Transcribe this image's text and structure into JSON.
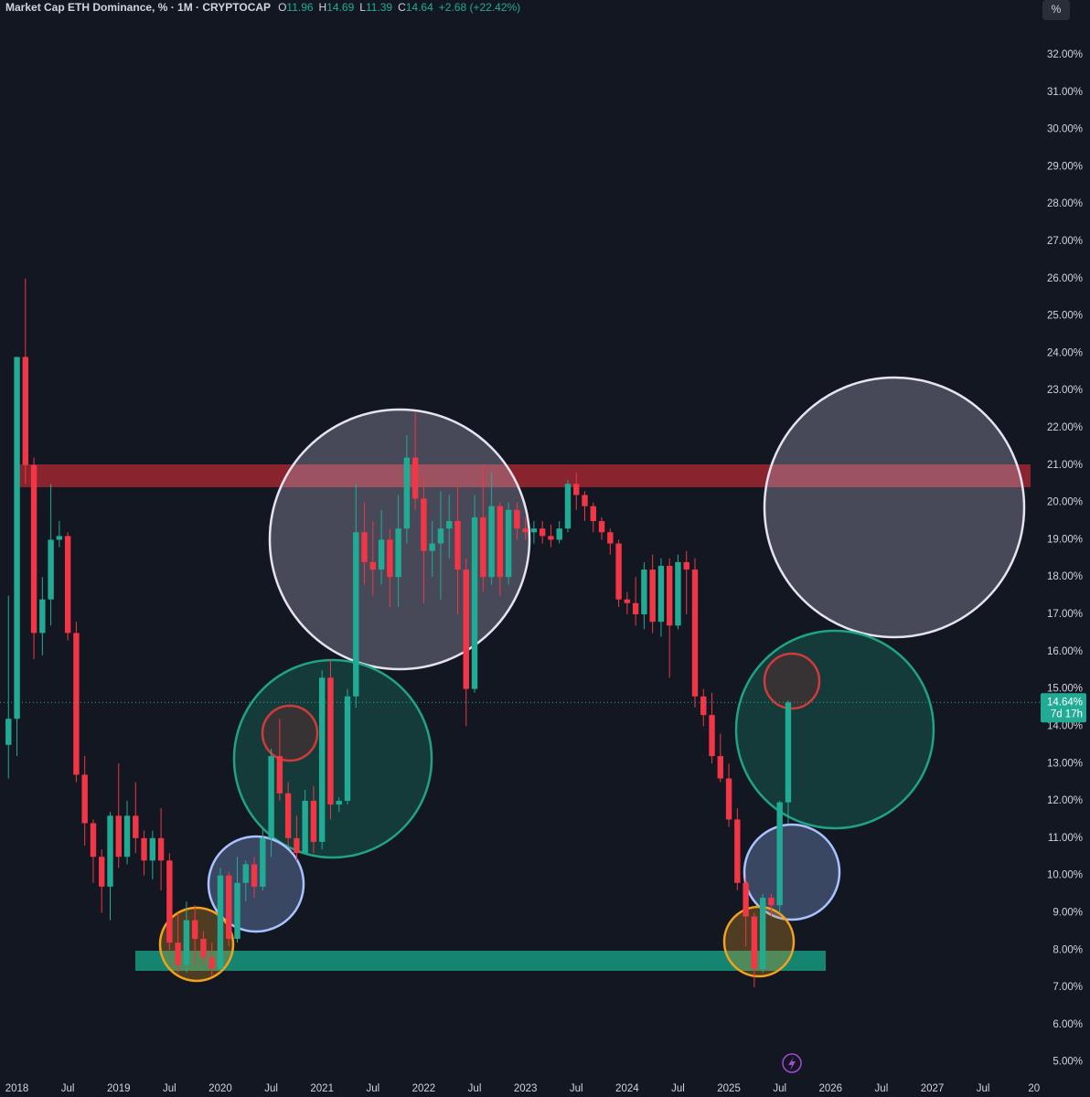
{
  "chart_data": {
    "type": "candlestick",
    "title": "Market Cap ETH Dominance, % · 1M · CRYPTOCAP",
    "ohlc_legend": [
      {
        "key": "O",
        "value": "11.96"
      },
      {
        "key": "H",
        "value": "14.69"
      },
      {
        "key": "L",
        "value": "11.39"
      },
      {
        "key": "C",
        "value": "14.64"
      }
    ],
    "change": "+2.68 (+22.42%)",
    "scale_button": "%",
    "up_color": "#22ab94",
    "down_color": "#f23645",
    "x": [
      "2017-12",
      "2018-01",
      "2018-02",
      "2018-03",
      "2018-04",
      "2018-05",
      "2018-06",
      "2018-07",
      "2018-08",
      "2018-09",
      "2018-10",
      "2018-11",
      "2018-12",
      "2019-01",
      "2019-02",
      "2019-03",
      "2019-04",
      "2019-05",
      "2019-06",
      "2019-07",
      "2019-08",
      "2019-09",
      "2019-10",
      "2019-11",
      "2019-12",
      "2020-01",
      "2020-02",
      "2020-03",
      "2020-04",
      "2020-05",
      "2020-06",
      "2020-07",
      "2020-08",
      "2020-09",
      "2020-10",
      "2020-11",
      "2020-12",
      "2021-01",
      "2021-02",
      "2021-03",
      "2021-04",
      "2021-05",
      "2021-06",
      "2021-07",
      "2021-08",
      "2021-09",
      "2021-10",
      "2021-11",
      "2021-12",
      "2022-01",
      "2022-02",
      "2022-03",
      "2022-04",
      "2022-05",
      "2022-06",
      "2022-07",
      "2022-08",
      "2022-09",
      "2022-10",
      "2022-11",
      "2022-12",
      "2023-01",
      "2023-02",
      "2023-03",
      "2023-04",
      "2023-05",
      "2023-06",
      "2023-07",
      "2023-08",
      "2023-09",
      "2023-10",
      "2023-11",
      "2023-12",
      "2024-01",
      "2024-02",
      "2024-03",
      "2024-04",
      "2024-05",
      "2024-06",
      "2024-07",
      "2024-08",
      "2024-09",
      "2024-10",
      "2024-11",
      "2024-12",
      "2025-01",
      "2025-02",
      "2025-03",
      "2025-04",
      "2025-05",
      "2025-06",
      "2025-07",
      "2025-08"
    ],
    "open": [
      13.5,
      14.2,
      23.9,
      21.0,
      16.5,
      17.4,
      19.0,
      19.1,
      16.5,
      12.7,
      11.4,
      10.5,
      9.7,
      11.6,
      10.5,
      11.6,
      11.0,
      10.4,
      11.0,
      10.4,
      8.2,
      7.6,
      8.8,
      8.3,
      7.8,
      7.5,
      10.0,
      8.3,
      9.8,
      10.3,
      9.7,
      11.0,
      13.2,
      12.2,
      11.0,
      10.6,
      12.0,
      10.9,
      15.3,
      11.9,
      12.0,
      14.8,
      19.2,
      18.4,
      18.2,
      19.0,
      18.0,
      19.3,
      21.2,
      20.1,
      18.7,
      18.9,
      19.3,
      19.5,
      18.2,
      15.0,
      19.6,
      18.0,
      19.9,
      18.0,
      19.8,
      19.3,
      19.2,
      19.3,
      19.1,
      19.0,
      19.3,
      20.5,
      20.2,
      19.9,
      19.5,
      19.2,
      18.9,
      17.4,
      17.3,
      17.0,
      18.2,
      16.8,
      18.3,
      16.7,
      18.4,
      18.2,
      14.8,
      14.3,
      13.2,
      12.6,
      11.5,
      9.8,
      8.9,
      7.5,
      9.4,
      9.2,
      11.96
    ],
    "high": [
      17.5,
      23.9,
      26.0,
      21.2,
      18.0,
      20.5,
      19.5,
      19.2,
      16.8,
      13.2,
      11.5,
      10.7,
      11.7,
      13.0,
      12.0,
      12.5,
      11.2,
      11.2,
      11.8,
      10.6,
      9.0,
      9.3,
      9.2,
      8.5,
      8.2,
      10.2,
      10.1,
      10.5,
      10.4,
      10.5,
      11.3,
      13.4,
      14.2,
      12.5,
      11.6,
      12.3,
      12.4,
      15.5,
      15.8,
      12.1,
      15.0,
      20.5,
      20.0,
      19.5,
      19.8,
      19.3,
      20.2,
      21.8,
      22.4,
      20.7,
      19.5,
      20.3,
      20.2,
      20.4,
      18.5,
      20.2,
      21.0,
      20.8,
      20.0,
      20.0,
      20.0,
      19.6,
      19.5,
      19.5,
      19.4,
      19.5,
      20.6,
      20.8,
      20.3,
      20.0,
      19.6,
      19.3,
      19.0,
      17.6,
      18.0,
      18.4,
      18.6,
      18.5,
      18.5,
      18.6,
      18.7,
      18.5,
      15.0,
      14.9,
      13.8,
      13.0,
      11.8,
      10.0,
      9.0,
      9.5,
      9.5,
      12.0,
      14.69
    ],
    "low": [
      12.6,
      13.2,
      20.5,
      15.8,
      15.9,
      16.7,
      18.8,
      16.3,
      12.5,
      10.8,
      9.8,
      9.0,
      8.8,
      10.2,
      10.3,
      10.6,
      10.0,
      9.9,
      9.6,
      8.0,
      7.4,
      7.4,
      7.6,
      7.6,
      7.3,
      7.4,
      8.1,
      8.2,
      9.3,
      9.4,
      9.6,
      10.5,
      12.0,
      10.8,
      10.4,
      10.6,
      10.6,
      10.7,
      11.5,
      11.7,
      11.9,
      14.5,
      17.8,
      17.5,
      17.8,
      17.2,
      17.2,
      18.9,
      19.8,
      17.3,
      18.0,
      17.4,
      18.5,
      17.0,
      14.0,
      14.9,
      17.6,
      17.8,
      17.5,
      17.8,
      19.0,
      19.0,
      18.9,
      18.9,
      18.8,
      18.9,
      19.2,
      19.8,
      19.5,
      19.2,
      19.0,
      18.6,
      17.2,
      17.0,
      16.7,
      16.6,
      16.5,
      16.4,
      15.3,
      16.6,
      17.0,
      14.5,
      14.0,
      13.0,
      12.5,
      11.3,
      9.6,
      8.1,
      7.0,
      7.4,
      8.9,
      9.0,
      11.39
    ],
    "close": [
      14.2,
      23.9,
      21.0,
      16.5,
      17.4,
      19.0,
      19.1,
      16.5,
      12.7,
      11.4,
      10.5,
      9.7,
      11.6,
      10.5,
      11.6,
      11.0,
      10.4,
      11.0,
      10.4,
      8.2,
      7.6,
      8.8,
      8.3,
      7.8,
      7.5,
      10.0,
      8.3,
      9.8,
      10.3,
      9.7,
      11.0,
      13.2,
      12.2,
      11.0,
      10.6,
      12.0,
      10.9,
      15.3,
      11.9,
      12.0,
      14.8,
      19.2,
      18.4,
      18.2,
      19.0,
      18.0,
      19.3,
      21.2,
      20.1,
      18.7,
      18.9,
      19.3,
      19.5,
      18.2,
      15.0,
      19.6,
      18.0,
      19.9,
      18.0,
      19.8,
      19.3,
      19.2,
      19.3,
      19.1,
      19.0,
      19.3,
      20.5,
      20.2,
      19.9,
      19.5,
      19.2,
      18.9,
      17.4,
      17.3,
      17.0,
      18.2,
      16.8,
      18.3,
      16.7,
      18.4,
      18.2,
      14.8,
      14.3,
      13.2,
      12.6,
      11.5,
      9.8,
      8.9,
      7.5,
      9.4,
      9.2,
      11.96,
      14.64
    ],
    "xlim": [
      "2017-11",
      "2028-02"
    ],
    "xticks": [
      {
        "value": "2018-01",
        "label": "2018"
      },
      {
        "value": "2018-07",
        "label": "Jul"
      },
      {
        "value": "2019-01",
        "label": "2019"
      },
      {
        "value": "2019-07",
        "label": "Jul"
      },
      {
        "value": "2020-01",
        "label": "2020"
      },
      {
        "value": "2020-07",
        "label": "Jul"
      },
      {
        "value": "2021-01",
        "label": "2021"
      },
      {
        "value": "2021-07",
        "label": "Jul"
      },
      {
        "value": "2022-01",
        "label": "2022"
      },
      {
        "value": "2022-07",
        "label": "Jul"
      },
      {
        "value": "2023-01",
        "label": "2023"
      },
      {
        "value": "2023-07",
        "label": "Jul"
      },
      {
        "value": "2024-01",
        "label": "2024"
      },
      {
        "value": "2024-07",
        "label": "Jul"
      },
      {
        "value": "2025-01",
        "label": "2025"
      },
      {
        "value": "2025-07",
        "label": "Jul"
      },
      {
        "value": "2026-01",
        "label": "2026"
      },
      {
        "value": "2026-07",
        "label": "Jul"
      },
      {
        "value": "2027-01",
        "label": "2027"
      },
      {
        "value": "2027-07",
        "label": "Jul"
      },
      {
        "value": "2028-01",
        "label": "20"
      }
    ],
    "ylim": [
      4.55,
      33.47
    ],
    "yticks": [
      {
        "value": 5,
        "label": "5.00%"
      },
      {
        "value": 6,
        "label": "6.00%"
      },
      {
        "value": 7,
        "label": "7.00%"
      },
      {
        "value": 8,
        "label": "8.00%"
      },
      {
        "value": 9,
        "label": "9.00%"
      },
      {
        "value": 10,
        "label": "10.00%"
      },
      {
        "value": 11,
        "label": "11.00%"
      },
      {
        "value": 12,
        "label": "12.00%"
      },
      {
        "value": 13,
        "label": "13.00%"
      },
      {
        "value": 14,
        "label": "14.00%"
      },
      {
        "value": 15,
        "label": "15.00%"
      },
      {
        "value": 16,
        "label": "16.00%"
      },
      {
        "value": 17,
        "label": "17.00%"
      },
      {
        "value": 18,
        "label": "18.00%"
      },
      {
        "value": 19,
        "label": "19.00%"
      },
      {
        "value": 20,
        "label": "20.00%"
      },
      {
        "value": 21,
        "label": "21.00%"
      },
      {
        "value": 22,
        "label": "22.00%"
      },
      {
        "value": 23,
        "label": "23.00%"
      },
      {
        "value": 24,
        "label": "24.00%"
      },
      {
        "value": 25,
        "label": "25.00%"
      },
      {
        "value": 26,
        "label": "26.00%"
      },
      {
        "value": 27,
        "label": "27.00%"
      },
      {
        "value": 28,
        "label": "28.00%"
      },
      {
        "value": 29,
        "label": "29.00%"
      },
      {
        "value": 30,
        "label": "30.00%"
      },
      {
        "value": 31,
        "label": "31.00%"
      },
      {
        "value": 32,
        "label": "32.00%"
      }
    ],
    "last_price": {
      "value": 14.64,
      "label": "14.64%"
    },
    "countdown": "7d 17h",
    "grid": false
  }
}
